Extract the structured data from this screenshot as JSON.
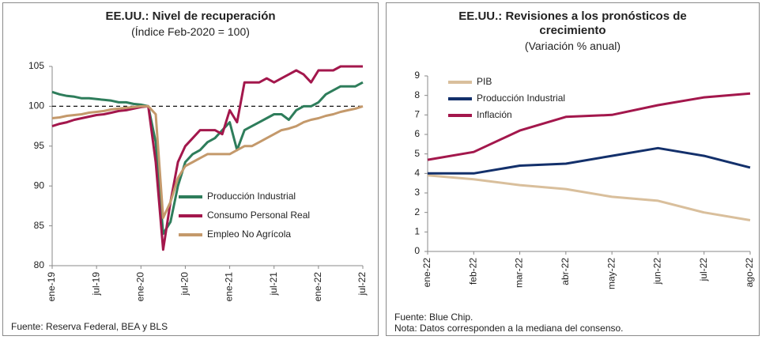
{
  "chart_data": [
    {
      "type": "line",
      "title": "EE.UU.: Nivel de recuperación",
      "subtitle": "(Índice Feb-2020 = 100)",
      "categories": [
        "ene-19",
        null,
        null,
        null,
        null,
        null,
        "jul-19",
        null,
        null,
        null,
        null,
        null,
        "ene-20",
        null,
        null,
        null,
        null,
        null,
        "jul-20",
        null,
        null,
        null,
        null,
        null,
        "ene-21",
        null,
        null,
        null,
        null,
        null,
        "jul-21",
        null,
        null,
        null,
        null,
        null,
        "ene-22",
        null,
        null,
        null,
        null,
        null,
        "jul-22"
      ],
      "series": [
        {
          "name": "Producción Industrial",
          "color": "#2e7d5b",
          "values": [
            101.8,
            101.5,
            101.3,
            101.2,
            101,
            101,
            100.9,
            100.8,
            100.7,
            100.5,
            100.5,
            100.3,
            100.2,
            100,
            95.5,
            84,
            85.5,
            90,
            93,
            94,
            94.5,
            95.5,
            96,
            97,
            98,
            94.5,
            97,
            97.5,
            98,
            98.5,
            99,
            99,
            98.3,
            99.5,
            100,
            100,
            100.5,
            101.5,
            102,
            102.5,
            102.5,
            102.5,
            103
          ]
        },
        {
          "name": "Consumo Personal Real",
          "color": "#a3174c",
          "values": [
            97.5,
            97.8,
            98,
            98.3,
            98.5,
            98.7,
            98.9,
            99,
            99.2,
            99.4,
            99.5,
            99.7,
            99.9,
            100,
            93,
            82,
            88,
            93,
            95,
            96,
            97,
            97,
            97,
            96.5,
            99.5,
            98,
            103,
            103,
            103,
            103.5,
            103,
            103.5,
            104,
            104.5,
            104,
            103,
            104.5,
            104.5,
            104.5,
            105,
            105,
            105,
            105
          ]
        },
        {
          "name": "Empleo No Agrícola",
          "color": "#c4996b",
          "values": [
            98.5,
            98.6,
            98.8,
            98.9,
            99,
            99.2,
            99.3,
            99.4,
            99.6,
            99.7,
            99.8,
            99.9,
            100,
            100,
            99,
            86,
            88,
            91,
            92.5,
            93,
            93.5,
            94,
            94,
            94,
            94,
            94.5,
            95,
            95,
            95.5,
            96,
            96.5,
            97,
            97.2,
            97.5,
            98,
            98.3,
            98.5,
            98.8,
            99,
            99.3,
            99.5,
            99.7,
            100
          ]
        }
      ],
      "reference_line": 100,
      "ylim": [
        80,
        105
      ],
      "yticks": [
        80,
        85,
        90,
        95,
        100,
        105
      ],
      "legend": "lower right",
      "notes": [
        "Fuente: Reserva Federal, BEA y BLS"
      ]
    },
    {
      "type": "line",
      "title": "EE.UU.: Revisiones a los pronósticos de crecimiento",
      "subtitle": "(Variación % anual)",
      "categories": [
        "ene-22",
        "feb-22",
        "mar-22",
        "abr-22",
        "may-22",
        "jun-22",
        "jul-22",
        "ago-22"
      ],
      "series": [
        {
          "name": "PIB",
          "color": "#d9bf9c",
          "values": [
            3.9,
            3.7,
            3.4,
            3.2,
            2.8,
            2.6,
            2.0,
            1.6
          ]
        },
        {
          "name": "Producción Industrial",
          "color": "#13306b",
          "values": [
            4.0,
            4.0,
            4.4,
            4.5,
            4.9,
            5.3,
            4.9,
            4.3
          ]
        },
        {
          "name": "Inflación",
          "color": "#a3174c",
          "values": [
            4.7,
            5.1,
            6.2,
            6.9,
            7.0,
            7.5,
            7.9,
            8.1
          ]
        }
      ],
      "ylim": [
        0,
        9
      ],
      "yticks": [
        0,
        1,
        2,
        3,
        4,
        5,
        6,
        7,
        8,
        9
      ],
      "legend": "upper left",
      "notes": [
        "Fuente: Blue Chip.",
        "Nota: Datos corresponden a la mediana del consenso."
      ]
    }
  ]
}
